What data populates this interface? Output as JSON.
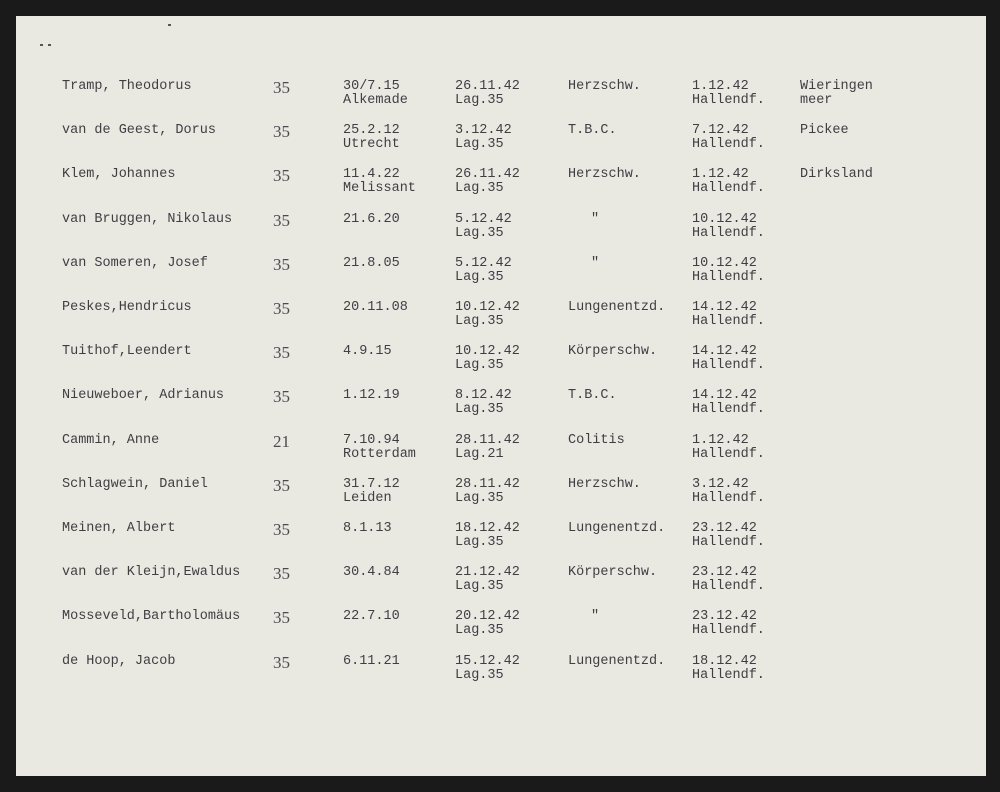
{
  "rows": [
    {
      "name": "Tramp, Theodorus",
      "age": "35",
      "born": "30/7.15",
      "born_place": "Alkemade",
      "admitted": "26.11.42",
      "camp": "Lag.35",
      "cause": "Herzschw.",
      "died": "1.12.42",
      "died_place": "Hallendf.",
      "origin": "Wieringen",
      "origin2": "meer"
    },
    {
      "name": "van de Geest, Dorus",
      "age": "35",
      "born": "25.2.12",
      "born_place": "Utrecht",
      "admitted": "3.12.42",
      "camp": "Lag.35",
      "cause": "T.B.C.",
      "died": "7.12.42",
      "died_place": "Hallendf.",
      "origin": "Pickee",
      "origin2": ""
    },
    {
      "name": "Klem, Johannes",
      "age": "35",
      "born": "11.4.22",
      "born_place": "Melissant",
      "admitted": "26.11.42",
      "camp": "Lag.35",
      "cause": "Herzschw.",
      "died": "1.12.42",
      "died_place": "Hallendf.",
      "origin": "Dirksland",
      "origin2": ""
    },
    {
      "name": "van Bruggen, Nikolaus",
      "age": "35",
      "born": "21.6.20",
      "born_place": "",
      "admitted": "5.12.42",
      "camp": "Lag.35",
      "cause": "\"",
      "died": "10.12.42",
      "died_place": "Hallendf.",
      "origin": "",
      "origin2": ""
    },
    {
      "name": "van Someren, Josef",
      "age": "35",
      "born": "21.8.05",
      "born_place": "",
      "admitted": "5.12.42",
      "camp": "Lag.35",
      "cause": "\"",
      "died": "10.12.42",
      "died_place": "Hallendf.",
      "origin": "",
      "origin2": ""
    },
    {
      "name": "Peskes,Hendricus",
      "age": "35",
      "born": "20.11.08",
      "born_place": "",
      "admitted": "10.12.42",
      "camp": "Lag.35",
      "cause": "Lungenentzd.",
      "died": "14.12.42",
      "died_place": "Hallendf.",
      "origin": "",
      "origin2": ""
    },
    {
      "name": "Tuithof,Leendert",
      "age": "35",
      "born": "4.9.15",
      "born_place": "",
      "admitted": "10.12.42",
      "camp": "Lag.35",
      "cause": "Körperschw.",
      "died": "14.12.42",
      "died_place": "Hallendf.",
      "origin": "",
      "origin2": ""
    },
    {
      "name": "Nieuweboer, Adrianus",
      "age": "35",
      "born": "1.12.19",
      "born_place": "",
      "admitted": "8.12.42",
      "camp": "Lag.35",
      "cause": "T.B.C.",
      "died": "14.12.42",
      "died_place": "Hallendf.",
      "origin": "",
      "origin2": ""
    },
    {
      "name": "Cammin, Anne",
      "age": "21",
      "born": "7.10.94",
      "born_place": "Rotterdam",
      "admitted": "28.11.42",
      "camp": "Lag.21",
      "cause": "Colitis",
      "died": "1.12.42",
      "died_place": "Hallendf.",
      "origin": "",
      "origin2": ""
    },
    {
      "name": "Schlagwein, Daniel",
      "age": "35",
      "born": "31.7.12",
      "born_place": "Leiden",
      "admitted": "28.11.42",
      "camp": "Lag.35",
      "cause": "Herzschw.",
      "died": "3.12.42",
      "died_place": "Hallendf.",
      "origin": "",
      "origin2": ""
    },
    {
      "name": "Meinen, Albert",
      "age": "35",
      "born": "8.1.13",
      "born_place": "",
      "admitted": "18.12.42",
      "camp": "Lag.35",
      "cause": "Lungenentzd.",
      "died": "23.12.42",
      "died_place": "Hallendf.",
      "origin": "",
      "origin2": ""
    },
    {
      "name": "van der Kleijn,Ewaldus",
      "age": "35",
      "born": "30.4.84",
      "born_place": "",
      "admitted": "21.12.42",
      "camp": "Lag.35",
      "cause": "Körperschw.",
      "died": "23.12.42",
      "died_place": "Hallendf.",
      "origin": "",
      "origin2": ""
    },
    {
      "name": "Mosseveld,Bartholomäus",
      "age": "35",
      "born": "22.7.10",
      "born_place": "",
      "admitted": "20.12.42",
      "camp": "Lag.35",
      "cause": "\"",
      "died": "23.12.42",
      "died_place": "Hallendf.",
      "origin": "",
      "origin2": ""
    },
    {
      "name": "de Hoop, Jacob",
      "age": "35",
      "born": "6.11.21",
      "born_place": "",
      "admitted": "15.12.42",
      "camp": "Lag.35",
      "cause": "Lungenentzd.",
      "died": "18.12.42",
      "died_place": "Hallendf.",
      "origin": "",
      "origin2": ""
    }
  ]
}
